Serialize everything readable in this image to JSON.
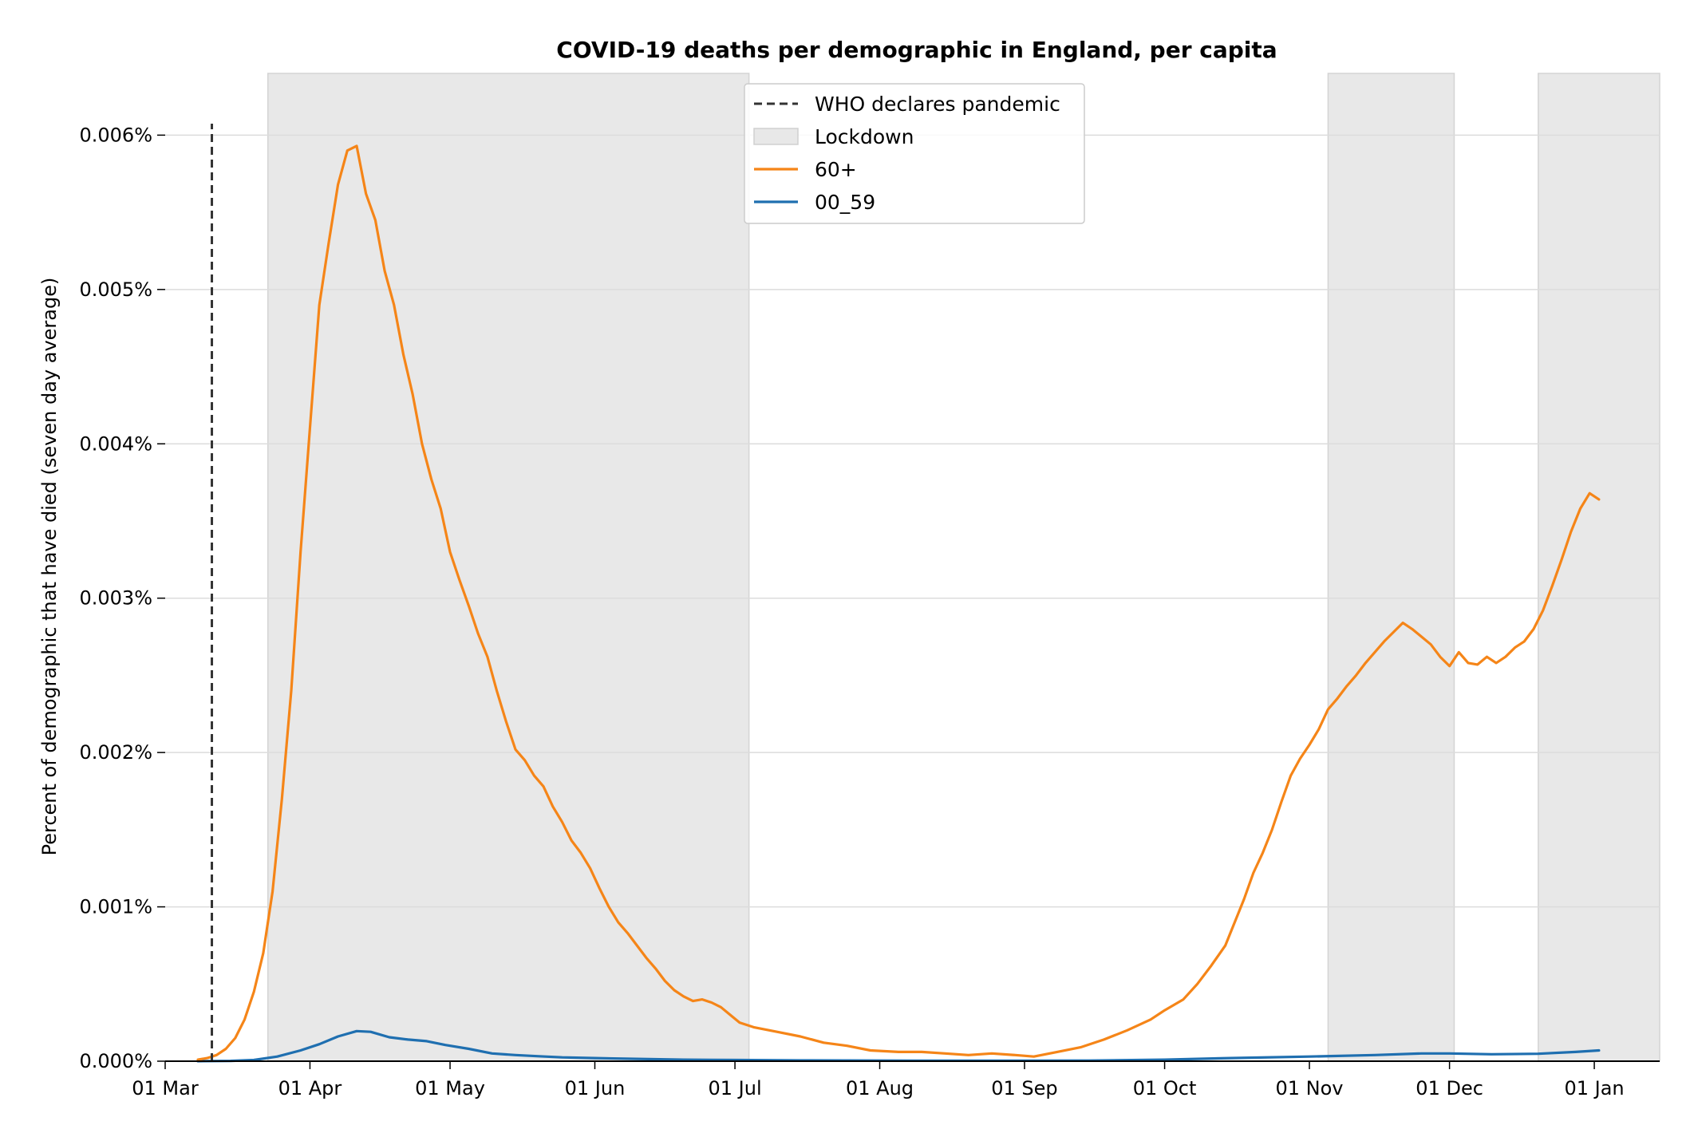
{
  "chart_data": {
    "type": "line",
    "title": "COVID-19 deaths per demographic in England, per capita",
    "xlabel": "",
    "ylabel": "Percent of demographic that have died (seven day average)",
    "x_tick_labels": [
      "01 Mar",
      "01 Apr",
      "01 May",
      "01 Jun",
      "01 Jul",
      "01 Aug",
      "01 Sep",
      "01 Oct",
      "01 Nov",
      "01 Dec",
      "01 Jan"
    ],
    "x_tick_dates": [
      "2020-03-01",
      "2020-04-01",
      "2020-05-01",
      "2020-06-01",
      "2020-07-01",
      "2020-08-01",
      "2020-09-01",
      "2020-10-01",
      "2020-11-01",
      "2020-12-01",
      "2021-01-01"
    ],
    "xlim": [
      "2020-03-01",
      "2021-01-15"
    ],
    "y_tick_labels": [
      "0.000%",
      "0.001%",
      "0.002%",
      "0.003%",
      "0.004%",
      "0.005%",
      "0.006%"
    ],
    "y_tick_values": [
      0,
      0.001,
      0.002,
      0.003,
      0.004,
      0.005,
      0.006
    ],
    "ylim": [
      0,
      0.0064
    ],
    "grid": "horizontal",
    "legend_position": "top-center",
    "pandemic_declared": {
      "label": "WHO declares pandemic",
      "date": "2020-03-11",
      "color": "#333333"
    },
    "lockdowns": {
      "label": "Lockdown",
      "color": "#e8e8e8",
      "periods": [
        {
          "start": "2020-03-23",
          "end": "2020-07-04"
        },
        {
          "start": "2020-11-05",
          "end": "2020-12-02"
        },
        {
          "start": "2020-12-20",
          "end": "2021-01-15"
        }
      ]
    },
    "series": [
      {
        "name": "60+",
        "color": "#f58518",
        "points": [
          [
            "2020-03-08",
            1e-05
          ],
          [
            "2020-03-10",
            2e-05
          ],
          [
            "2020-03-12",
            4e-05
          ],
          [
            "2020-03-14",
            8e-05
          ],
          [
            "2020-03-16",
            0.00015
          ],
          [
            "2020-03-18",
            0.00027
          ],
          [
            "2020-03-20",
            0.00045
          ],
          [
            "2020-03-22",
            0.0007
          ],
          [
            "2020-03-24",
            0.0011
          ],
          [
            "2020-03-26",
            0.0017
          ],
          [
            "2020-03-28",
            0.0024
          ],
          [
            "2020-03-30",
            0.0033
          ],
          [
            "2020-04-01",
            0.0041
          ],
          [
            "2020-04-03",
            0.0049
          ],
          [
            "2020-04-05",
            0.0053
          ],
          [
            "2020-04-07",
            0.00568
          ],
          [
            "2020-04-09",
            0.0059
          ],
          [
            "2020-04-11",
            0.00593
          ],
          [
            "2020-04-13",
            0.00562
          ],
          [
            "2020-04-15",
            0.00545
          ],
          [
            "2020-04-17",
            0.00512
          ],
          [
            "2020-04-19",
            0.0049
          ],
          [
            "2020-04-21",
            0.00458
          ],
          [
            "2020-04-23",
            0.00432
          ],
          [
            "2020-04-25",
            0.004
          ],
          [
            "2020-04-27",
            0.00377
          ],
          [
            "2020-04-29",
            0.00358
          ],
          [
            "2020-05-01",
            0.0033
          ],
          [
            "2020-05-03",
            0.00312
          ],
          [
            "2020-05-05",
            0.00295
          ],
          [
            "2020-05-07",
            0.00277
          ],
          [
            "2020-05-09",
            0.00262
          ],
          [
            "2020-05-11",
            0.0024
          ],
          [
            "2020-05-13",
            0.0022
          ],
          [
            "2020-05-15",
            0.00202
          ],
          [
            "2020-05-17",
            0.00195
          ],
          [
            "2020-05-19",
            0.00185
          ],
          [
            "2020-05-21",
            0.00178
          ],
          [
            "2020-05-23",
            0.00165
          ],
          [
            "2020-05-25",
            0.00155
          ],
          [
            "2020-05-27",
            0.00143
          ],
          [
            "2020-05-29",
            0.00135
          ],
          [
            "2020-05-31",
            0.00125
          ],
          [
            "2020-06-02",
            0.00112
          ],
          [
            "2020-06-04",
            0.001
          ],
          [
            "2020-06-06",
            0.0009
          ],
          [
            "2020-06-08",
            0.00083
          ],
          [
            "2020-06-10",
            0.00075
          ],
          [
            "2020-06-12",
            0.00067
          ],
          [
            "2020-06-14",
            0.0006
          ],
          [
            "2020-06-16",
            0.00052
          ],
          [
            "2020-06-18",
            0.00046
          ],
          [
            "2020-06-20",
            0.00042
          ],
          [
            "2020-06-22",
            0.00039
          ],
          [
            "2020-06-24",
            0.0004
          ],
          [
            "2020-06-26",
            0.00038
          ],
          [
            "2020-06-28",
            0.00035
          ],
          [
            "2020-06-30",
            0.0003
          ],
          [
            "2020-07-02",
            0.00025
          ],
          [
            "2020-07-05",
            0.00022
          ],
          [
            "2020-07-10",
            0.00019
          ],
          [
            "2020-07-15",
            0.00016
          ],
          [
            "2020-07-20",
            0.00012
          ],
          [
            "2020-07-25",
            0.0001
          ],
          [
            "2020-07-30",
            7e-05
          ],
          [
            "2020-08-05",
            6e-05
          ],
          [
            "2020-08-10",
            6e-05
          ],
          [
            "2020-08-15",
            5e-05
          ],
          [
            "2020-08-20",
            4e-05
          ],
          [
            "2020-08-25",
            5e-05
          ],
          [
            "2020-08-30",
            4e-05
          ],
          [
            "2020-09-03",
            3e-05
          ],
          [
            "2020-09-08",
            6e-05
          ],
          [
            "2020-09-13",
            9e-05
          ],
          [
            "2020-09-18",
            0.00014
          ],
          [
            "2020-09-23",
            0.0002
          ],
          [
            "2020-09-28",
            0.00027
          ],
          [
            "2020-10-01",
            0.00033
          ],
          [
            "2020-10-05",
            0.0004
          ],
          [
            "2020-10-08",
            0.0005
          ],
          [
            "2020-10-11",
            0.00062
          ],
          [
            "2020-10-14",
            0.00075
          ],
          [
            "2020-10-16",
            0.0009
          ],
          [
            "2020-10-18",
            0.00105
          ],
          [
            "2020-10-20",
            0.00122
          ],
          [
            "2020-10-22",
            0.00135
          ],
          [
            "2020-10-24",
            0.0015
          ],
          [
            "2020-10-26",
            0.00168
          ],
          [
            "2020-10-28",
            0.00185
          ],
          [
            "2020-10-30",
            0.00196
          ],
          [
            "2020-11-01",
            0.00205
          ],
          [
            "2020-11-03",
            0.00215
          ],
          [
            "2020-11-05",
            0.00228
          ],
          [
            "2020-11-07",
            0.00235
          ],
          [
            "2020-11-09",
            0.00243
          ],
          [
            "2020-11-11",
            0.0025
          ],
          [
            "2020-11-13",
            0.00258
          ],
          [
            "2020-11-15",
            0.00265
          ],
          [
            "2020-11-17",
            0.00272
          ],
          [
            "2020-11-19",
            0.00278
          ],
          [
            "2020-11-21",
            0.00284
          ],
          [
            "2020-11-23",
            0.0028
          ],
          [
            "2020-11-25",
            0.00275
          ],
          [
            "2020-11-27",
            0.0027
          ],
          [
            "2020-11-29",
            0.00262
          ],
          [
            "2020-12-01",
            0.00256
          ],
          [
            "2020-12-03",
            0.00265
          ],
          [
            "2020-12-05",
            0.00258
          ],
          [
            "2020-12-07",
            0.00257
          ],
          [
            "2020-12-09",
            0.00262
          ],
          [
            "2020-12-11",
            0.00258
          ],
          [
            "2020-12-13",
            0.00262
          ],
          [
            "2020-12-15",
            0.00268
          ],
          [
            "2020-12-17",
            0.00272
          ],
          [
            "2020-12-19",
            0.0028
          ],
          [
            "2020-12-21",
            0.00292
          ],
          [
            "2020-12-23",
            0.00308
          ],
          [
            "2020-12-25",
            0.00325
          ],
          [
            "2020-12-27",
            0.00343
          ],
          [
            "2020-12-29",
            0.00358
          ],
          [
            "2020-12-31",
            0.00368
          ],
          [
            "2021-01-02",
            0.00364
          ]
        ]
      },
      {
        "name": "00_59",
        "color": "#1f6fb0",
        "points": [
          [
            "2020-03-08",
            0.0
          ],
          [
            "2020-03-15",
            2e-06
          ],
          [
            "2020-03-20",
            8e-06
          ],
          [
            "2020-03-25",
            3e-05
          ],
          [
            "2020-03-30",
            7e-05
          ],
          [
            "2020-04-03",
            0.00011
          ],
          [
            "2020-04-07",
            0.00016
          ],
          [
            "2020-04-11",
            0.000195
          ],
          [
            "2020-04-14",
            0.00019
          ],
          [
            "2020-04-18",
            0.000155
          ],
          [
            "2020-04-22",
            0.00014
          ],
          [
            "2020-04-26",
            0.00013
          ],
          [
            "2020-04-30",
            0.000105
          ],
          [
            "2020-05-05",
            8e-05
          ],
          [
            "2020-05-10",
            5e-05
          ],
          [
            "2020-05-15",
            4e-05
          ],
          [
            "2020-05-20",
            3.2e-05
          ],
          [
            "2020-05-25",
            2.5e-05
          ],
          [
            "2020-06-01",
            2e-05
          ],
          [
            "2020-06-10",
            1.5e-05
          ],
          [
            "2020-06-20",
            1e-05
          ],
          [
            "2020-07-01",
            8e-06
          ],
          [
            "2020-07-15",
            5e-06
          ],
          [
            "2020-08-01",
            4e-06
          ],
          [
            "2020-08-15",
            3e-06
          ],
          [
            "2020-09-01",
            3e-06
          ],
          [
            "2020-09-15",
            4e-06
          ],
          [
            "2020-10-01",
            1e-05
          ],
          [
            "2020-10-15",
            2e-05
          ],
          [
            "2020-11-01",
            3e-05
          ],
          [
            "2020-11-15",
            4e-05
          ],
          [
            "2020-11-25",
            5e-05
          ],
          [
            "2020-12-01",
            5e-05
          ],
          [
            "2020-12-10",
            4.5e-05
          ],
          [
            "2020-12-20",
            4.8e-05
          ],
          [
            "2020-12-28",
            6e-05
          ],
          [
            "2021-01-02",
            7e-05
          ]
        ]
      }
    ]
  }
}
